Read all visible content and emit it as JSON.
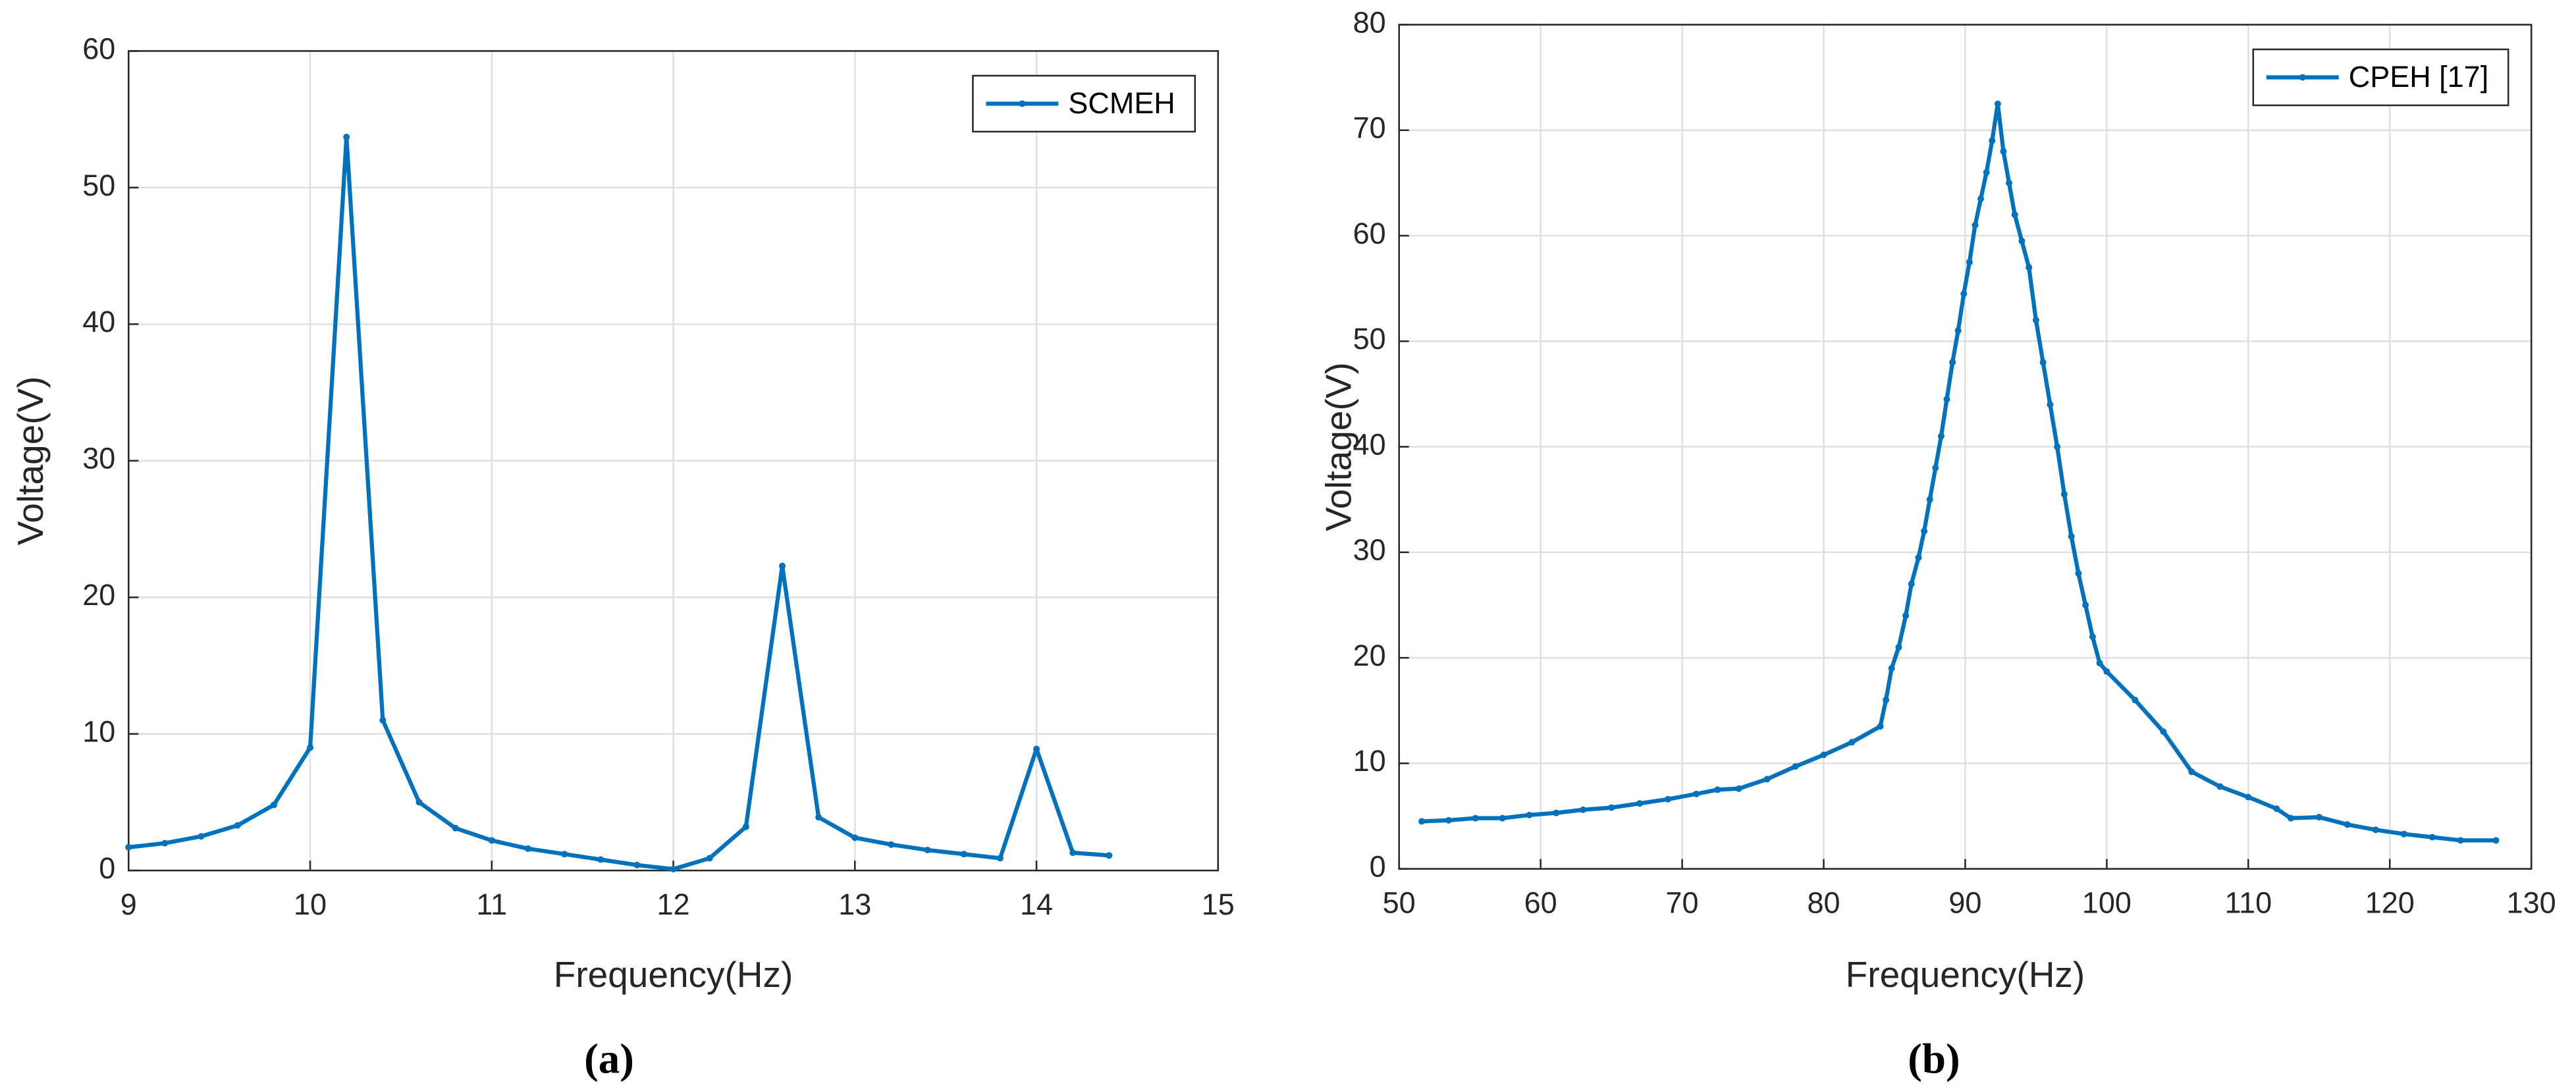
{
  "chart_data": [
    {
      "type": "line",
      "caption": "(a)",
      "x_label": "Frequency(Hz)",
      "y_label": "Voltage(V)",
      "xlim": [
        9,
        15
      ],
      "xticks": [
        9,
        10,
        11,
        12,
        13,
        14,
        15
      ],
      "ylim": [
        0,
        60
      ],
      "yticks": [
        0,
        10,
        20,
        30,
        40,
        50,
        60
      ],
      "grid": true,
      "legend": "upper right",
      "x": [
        9,
        9.2,
        9.4,
        9.6,
        9.8,
        10,
        10.2,
        10.4,
        10.6,
        10.8,
        11,
        11.2,
        11.4,
        11.6,
        11.8,
        12,
        12.2,
        12.4,
        12.6,
        12.8,
        13,
        13.2,
        13.4,
        13.6,
        13.8,
        14,
        14.2,
        14.4
      ],
      "series": [
        {
          "name": "SCMEH",
          "color": "#0072BD",
          "values": [
            1.7,
            2.0,
            2.5,
            3.3,
            4.8,
            9.0,
            53.7,
            11,
            5,
            3.1,
            2.2,
            1.6,
            1.2,
            0.8,
            0.4,
            0.1,
            0.9,
            3.2,
            22.3,
            3.9,
            2.4,
            1.9,
            1.5,
            1.2,
            0.9,
            8.9,
            1.3,
            1.1
          ]
        }
      ]
    },
    {
      "type": "line",
      "caption": "(b)",
      "x_label": "Frequency(Hz)",
      "y_label": "Voltage(V)",
      "xlim": [
        50,
        130
      ],
      "xticks": [
        50,
        60,
        70,
        80,
        90,
        100,
        110,
        120,
        130
      ],
      "ylim": [
        0,
        80
      ],
      "yticks": [
        0,
        10,
        20,
        30,
        40,
        50,
        60,
        70,
        80
      ],
      "grid": true,
      "legend": "upper right",
      "x": [
        51.6,
        53.5,
        55.4,
        57.3,
        59.2,
        61.1,
        63,
        65,
        67,
        69,
        71,
        72.5,
        74,
        76,
        78,
        80,
        82,
        84,
        84.4,
        84.8,
        85.3,
        85.8,
        86.2,
        86.7,
        87.1,
        87.5,
        87.9,
        88.3,
        88.7,
        89.1,
        89.5,
        89.9,
        90.3,
        90.7,
        91.1,
        91.5,
        91.9,
        92.3,
        92.7,
        93.1,
        93.5,
        94,
        94.5,
        95,
        95.5,
        96,
        96.5,
        97,
        97.5,
        98,
        98.5,
        99,
        99.5,
        100,
        102,
        104,
        106,
        108,
        110,
        112,
        113,
        115,
        117,
        119,
        121,
        123,
        125,
        127.5
      ],
      "series": [
        {
          "name": "CPEH [17]",
          "color": "#0072BD",
          "values": [
            4.5,
            4.6,
            4.8,
            4.8,
            5.1,
            5.3,
            5.6,
            5.8,
            6.2,
            6.6,
            7.1,
            7.5,
            7.6,
            8.5,
            9.7,
            10.8,
            12,
            13.5,
            16,
            19,
            21,
            24,
            27,
            29.5,
            32,
            35,
            38,
            41,
            44.5,
            48,
            51,
            54.5,
            57.5,
            61,
            63.5,
            66,
            69,
            72.5,
            68,
            65,
            62,
            59.5,
            57,
            52,
            48,
            44,
            40,
            35.5,
            31.5,
            28,
            25,
            22,
            19.5,
            18.7,
            16,
            13,
            9.2,
            7.8,
            6.8,
            5.7,
            4.8,
            4.9,
            4.2,
            3.7,
            3.3,
            3.0,
            2.7,
            2.7
          ]
        }
      ]
    }
  ]
}
